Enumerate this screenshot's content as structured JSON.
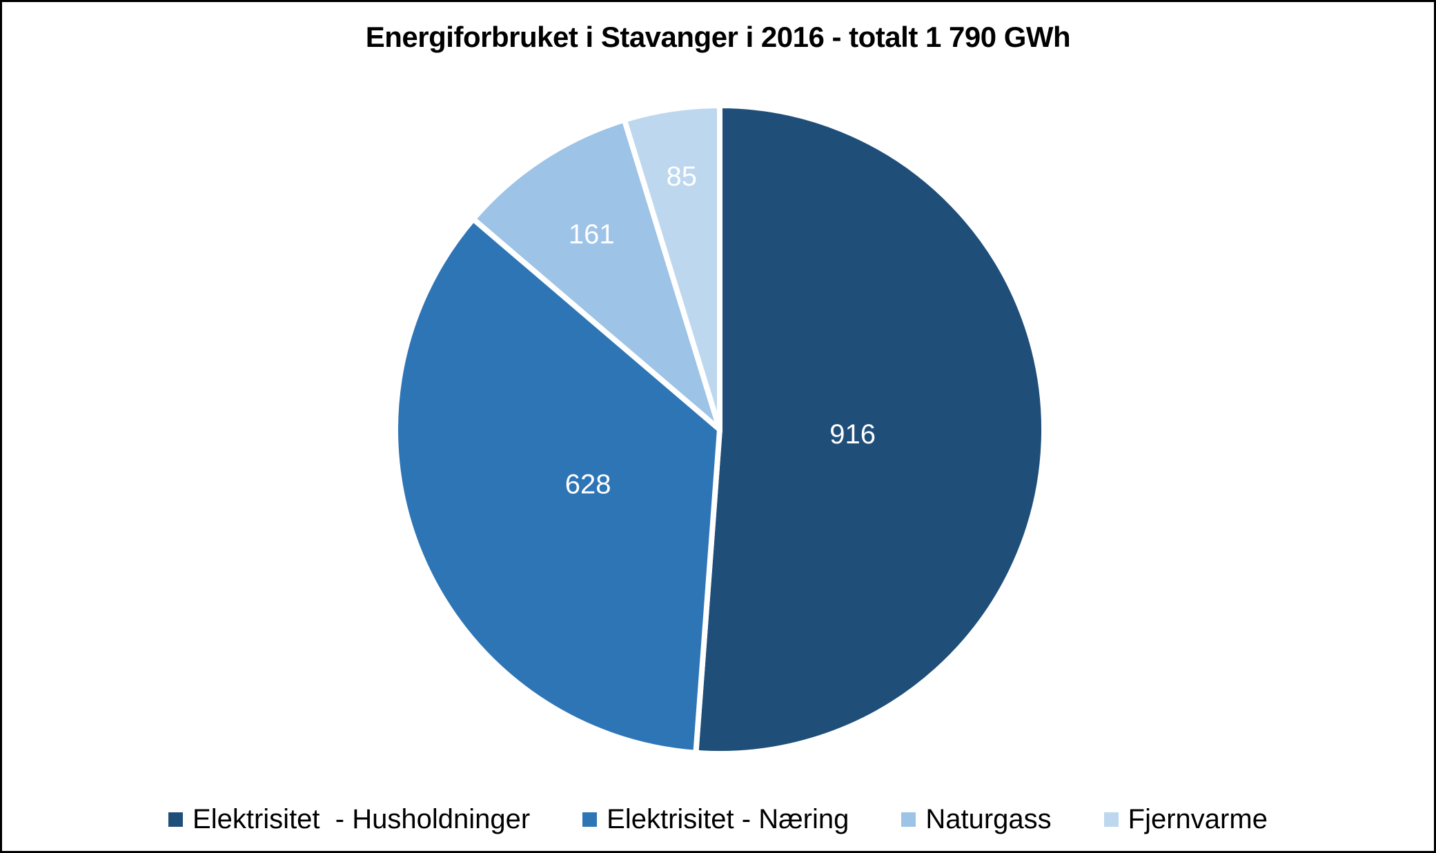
{
  "chart_data": {
    "type": "pie",
    "title": "Energiforbruket i Stavanger i 2016 - totalt 1 790 GWh",
    "total_label": "1 790 GWh",
    "total_value": 1790,
    "unit": "GWh",
    "categories": [
      "Elektrisitet  - Husholdninger",
      "Elektrisitet - Næring",
      "Naturgass",
      "Fjernvarme"
    ],
    "values": [
      916,
      628,
      161,
      85
    ],
    "slices": [
      {
        "label": "Elektrisitet  - Husholdninger",
        "value": 916,
        "color": "#1F4E79"
      },
      {
        "label": "Elektrisitet - Næring",
        "value": 628,
        "color": "#2E75B6"
      },
      {
        "label": "Naturgass",
        "value": 161,
        "color": "#9DC3E6"
      },
      {
        "label": "Fjernvarme",
        "value": 85,
        "color": "#BDD7EE"
      }
    ],
    "start_angle_deg": 0,
    "direction": "clockwise",
    "data_labels": "values",
    "data_label_color": "#FFFFFF",
    "slice_border_color": "#FFFFFF",
    "legend_position": "bottom",
    "label_radius_factors": [
      0.41,
      0.44,
      0.72,
      0.79
    ]
  }
}
